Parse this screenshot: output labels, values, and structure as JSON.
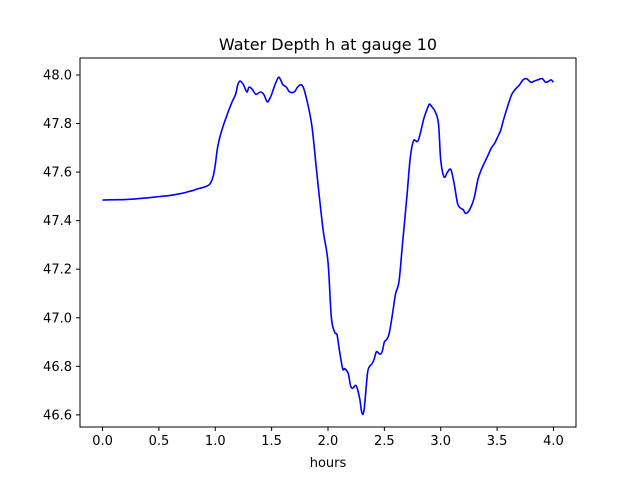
{
  "chart_data": {
    "type": "line",
    "title": "Water Depth h at gauge 10",
    "xlabel": "hours",
    "ylabel": "",
    "xlim": [
      -0.2,
      4.2
    ],
    "ylim": [
      46.55,
      48.07
    ],
    "xticks": [
      0.0,
      0.5,
      1.0,
      1.5,
      2.0,
      2.5,
      3.0,
      3.5,
      4.0
    ],
    "xtick_labels": [
      "0.0",
      "0.5",
      "1.0",
      "1.5",
      "2.0",
      "2.5",
      "3.0",
      "3.5",
      "4.0"
    ],
    "yticks": [
      46.6,
      46.8,
      47.0,
      47.2,
      47.4,
      47.6,
      47.8,
      48.0
    ],
    "ytick_labels": [
      "46.6",
      "46.8",
      "47.0",
      "47.2",
      "47.4",
      "47.6",
      "47.8",
      "48.0"
    ],
    "grid": false,
    "series": [
      {
        "color": "#0000ff",
        "x": [
          0.0,
          0.1,
          0.2,
          0.3,
          0.4,
          0.5,
          0.6,
          0.7,
          0.75,
          0.8,
          0.85,
          0.9,
          0.95,
          0.98,
          1.0,
          1.02,
          1.05,
          1.1,
          1.15,
          1.18,
          1.2,
          1.22,
          1.25,
          1.28,
          1.3,
          1.33,
          1.36,
          1.4,
          1.43,
          1.46,
          1.48,
          1.5,
          1.53,
          1.56,
          1.58,
          1.6,
          1.63,
          1.66,
          1.7,
          1.73,
          1.76,
          1.78,
          1.8,
          1.83,
          1.86,
          1.9,
          1.93,
          1.96,
          2.0,
          2.03,
          2.06,
          2.08,
          2.1,
          2.13,
          2.15,
          2.18,
          2.2,
          2.22,
          2.25,
          2.28,
          2.3,
          2.32,
          2.35,
          2.37,
          2.39,
          2.41,
          2.43,
          2.46,
          2.48,
          2.5,
          2.52,
          2.54,
          2.56,
          2.58,
          2.6,
          2.63,
          2.66,
          2.7,
          2.73,
          2.76,
          2.8,
          2.85,
          2.88,
          2.9,
          2.92,
          2.95,
          2.98,
          3.0,
          3.03,
          3.06,
          3.09,
          3.12,
          3.15,
          3.18,
          3.2,
          3.22,
          3.25,
          3.28,
          3.3,
          3.33,
          3.36,
          3.4,
          3.42,
          3.45,
          3.48,
          3.5,
          3.53,
          3.56,
          3.6,
          3.63,
          3.66,
          3.7,
          3.73,
          3.76,
          3.8,
          3.83,
          3.86,
          3.9,
          3.93,
          3.96,
          3.98,
          4.0
        ],
        "y": [
          47.485,
          47.486,
          47.487,
          47.49,
          47.494,
          47.499,
          47.504,
          47.512,
          47.518,
          47.524,
          47.532,
          47.538,
          47.55,
          47.58,
          47.63,
          47.7,
          47.76,
          47.83,
          47.89,
          47.92,
          47.96,
          47.975,
          47.96,
          47.93,
          47.95,
          47.94,
          47.92,
          47.93,
          47.92,
          47.89,
          47.9,
          47.92,
          47.96,
          47.99,
          47.98,
          47.96,
          47.95,
          47.93,
          47.93,
          47.95,
          47.96,
          47.95,
          47.92,
          47.86,
          47.78,
          47.6,
          47.47,
          47.35,
          47.23,
          47.0,
          46.94,
          46.93,
          46.87,
          46.79,
          46.79,
          46.77,
          46.72,
          46.71,
          46.72,
          46.67,
          46.61,
          46.62,
          46.77,
          46.8,
          46.81,
          46.83,
          46.86,
          46.85,
          46.86,
          46.9,
          46.91,
          46.93,
          46.98,
          47.04,
          47.1,
          47.15,
          47.3,
          47.5,
          47.66,
          47.73,
          47.73,
          47.82,
          47.86,
          47.88,
          47.87,
          47.85,
          47.8,
          47.65,
          47.58,
          47.6,
          47.61,
          47.55,
          47.47,
          47.45,
          47.445,
          47.43,
          47.44,
          47.47,
          47.5,
          47.57,
          47.61,
          47.65,
          47.67,
          47.7,
          47.72,
          47.74,
          47.77,
          47.82,
          47.88,
          47.92,
          47.94,
          47.96,
          47.98,
          47.985,
          47.97,
          47.975,
          47.98,
          47.985,
          47.97,
          47.975,
          47.98,
          47.97
        ]
      }
    ]
  }
}
